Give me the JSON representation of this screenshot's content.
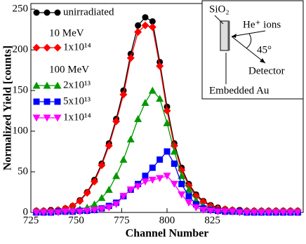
{
  "chart_data": {
    "type": "line",
    "x_label": "Channel Number",
    "y_label": "Normalized Yield [counts]",
    "xlim": [
      725,
      875
    ],
    "xticks": [
      725,
      750,
      775,
      800,
      825
    ],
    "ylim": [
      0,
      257
    ],
    "yticks": [
      0,
      50,
      100,
      150,
      200,
      250
    ],
    "x": [
      728,
      732,
      736,
      740,
      744,
      748,
      752,
      756,
      760,
      764,
      768,
      772,
      776,
      780,
      784,
      788,
      792,
      796,
      800,
      804,
      808,
      812,
      816,
      820,
      824,
      828,
      832,
      836,
      840,
      844,
      848,
      852,
      856,
      860,
      864,
      868,
      872
    ],
    "legend_groups": [
      "10 MeV",
      "100 MeV"
    ],
    "annotations": [
      "SiO₂",
      "He⁺ ions",
      "45°",
      "Detector",
      "Embedded Au"
    ],
    "series": [
      {
        "name": "unirradiated",
        "color": "#000000",
        "marker": "circle",
        "values": [
          2,
          2,
          3,
          3,
          5,
          8,
          15,
          25,
          40,
          60,
          85,
          115,
          150,
          195,
          230,
          240,
          235,
          185,
          130,
          85,
          55,
          35,
          22,
          14,
          9,
          6,
          4,
          3,
          3,
          2,
          2,
          2,
          2,
          2,
          2,
          2,
          2
        ]
      },
      {
        "name": "1x10¹⁴",
        "color": "#ff0000",
        "marker": "diamond",
        "values": [
          2,
          2,
          2,
          3,
          5,
          8,
          14,
          24,
          38,
          58,
          82,
          112,
          145,
          190,
          222,
          230,
          228,
          180,
          125,
          82,
          52,
          33,
          20,
          13,
          8,
          5,
          4,
          3,
          2,
          2,
          2,
          2,
          2,
          2,
          2,
          2,
          2
        ]
      },
      {
        "name": "2x10¹³",
        "color": "#009900",
        "marker": "triangle-up",
        "values": [
          1,
          1,
          1,
          2,
          2,
          3,
          4,
          6,
          10,
          18,
          28,
          45,
          65,
          90,
          115,
          135,
          150,
          140,
          110,
          75,
          45,
          28,
          15,
          8,
          5,
          3,
          2,
          2,
          1,
          1,
          1,
          1,
          1,
          1,
          1,
          1,
          1
        ]
      },
      {
        "name": "5x10¹³",
        "color": "#0000ff",
        "marker": "square",
        "values": [
          0,
          0,
          0,
          1,
          1,
          1,
          2,
          2,
          3,
          5,
          8,
          12,
          20,
          28,
          35,
          45,
          55,
          65,
          75,
          60,
          35,
          20,
          10,
          5,
          3,
          2,
          1,
          1,
          1,
          0,
          0,
          0,
          0,
          0,
          0,
          0,
          0
        ]
      },
      {
        "name": "1x10¹⁴",
        "color": "#ff00ff",
        "marker": "triangle-down",
        "values": [
          0,
          0,
          0,
          0,
          1,
          1,
          1,
          2,
          3,
          4,
          6,
          10,
          20,
          28,
          32,
          38,
          40,
          42,
          45,
          35,
          22,
          12,
          6,
          3,
          2,
          1,
          1,
          1,
          0,
          0,
          0,
          0,
          0,
          0,
          0,
          0,
          0
        ]
      }
    ]
  }
}
